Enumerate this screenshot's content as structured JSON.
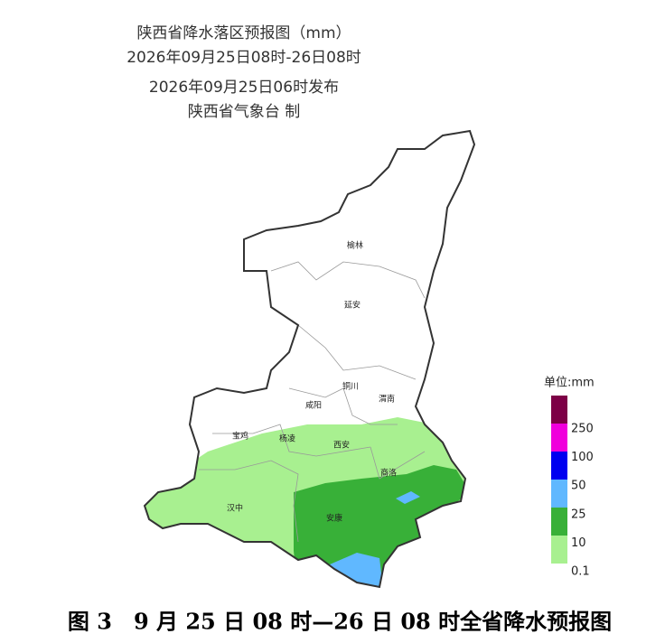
{
  "header": {
    "title": "陕西省降水落区预报图（mm）",
    "period": "2026年09月25日08时-26日08时",
    "issued": "2026年09月25日06时发布",
    "issuer": "陕西省气象台 制"
  },
  "cities": [
    "榆林",
    "延安",
    "铜川",
    "渭南",
    "咸阳",
    "宝鸡",
    "杨凌",
    "西安",
    "商洛",
    "汉中",
    "安康"
  ],
  "legend": {
    "title": "单位:mm",
    "colors": [
      "#7d0046",
      "#f000dc",
      "#0000f0",
      "#60b8ff",
      "#38b038",
      "#a8f090"
    ],
    "top_color": "#7d0046",
    "labels": [
      250,
      100,
      50,
      25,
      10,
      0.1
    ]
  },
  "caption": "图 3　9 月 25 日 08 时—26 日 08 时全省降水预报图"
}
